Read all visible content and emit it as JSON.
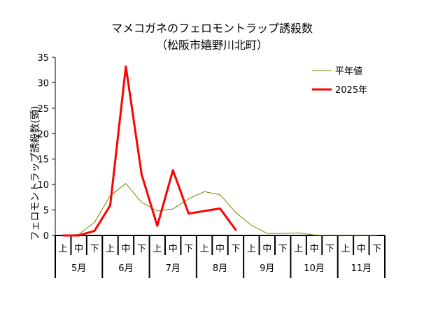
{
  "chart_data": {
    "type": "line",
    "title": "マメコガネのフェロモントラップ誘殺数",
    "subtitle": "（松阪市嬉野川北町）",
    "ylabel": "フェロモントラップ誘殺数(頭)",
    "ylim": [
      0,
      35
    ],
    "yticks": [
      "0",
      "5",
      "10",
      "15",
      "20",
      "25",
      "30",
      "35"
    ],
    "grid": false,
    "legend_position": "top-right",
    "x": [
      "上",
      "中",
      "下",
      "上",
      "中",
      "下",
      "上",
      "中",
      "下",
      "上",
      "中",
      "下",
      "上",
      "中",
      "下",
      "上",
      "中",
      "下",
      "上",
      "中",
      "下"
    ],
    "months": [
      "5月",
      "6月",
      "7月",
      "8月",
      "9月",
      "10月",
      "11月"
    ],
    "series": [
      {
        "name": "平年値",
        "color": "#808000",
        "values": [
          0,
          0.2,
          2.6,
          7.8,
          10.2,
          6.5,
          4.8,
          5.2,
          7.2,
          8.6,
          8.0,
          4.5,
          2.0,
          0.4,
          0.4,
          0.5,
          0.1,
          0,
          0,
          0,
          0
        ]
      },
      {
        "name": "2025年",
        "color": "#ff0000",
        "values": [
          0,
          0,
          0.9,
          5.9,
          33.2,
          12.0,
          1.9,
          12.8,
          4.3,
          4.8,
          5.3,
          1.1,
          null,
          null,
          null,
          null,
          null,
          null,
          null,
          null,
          null
        ]
      }
    ]
  }
}
